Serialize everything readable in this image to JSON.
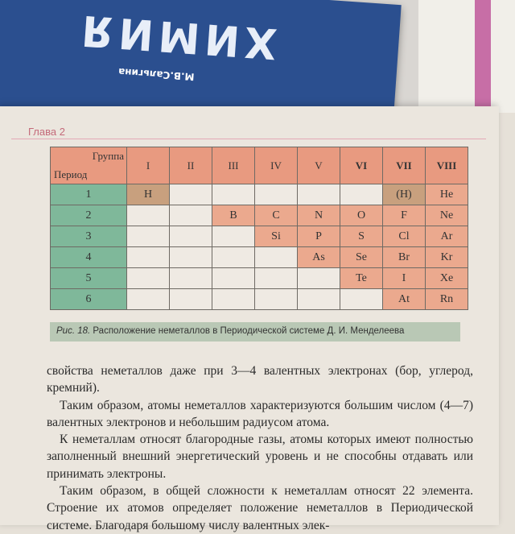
{
  "book": {
    "title": "ХИМИЯ",
    "author": "М.В.Сальгина"
  },
  "chapter": "Глава 2",
  "table": {
    "corner_group": "Группа",
    "corner_period": "Период",
    "groups": [
      "I",
      "II",
      "III",
      "IV",
      "V",
      "VI",
      "VII",
      "VIII"
    ],
    "rows": [
      {
        "period": "1",
        "cells": [
          "H",
          "",
          "",
          "",
          "",
          "",
          "(H)",
          "He"
        ]
      },
      {
        "period": "2",
        "cells": [
          "",
          "",
          "B",
          "C",
          "N",
          "O",
          "F",
          "Ne"
        ]
      },
      {
        "period": "3",
        "cells": [
          "",
          "",
          "",
          "Si",
          "P",
          "S",
          "Cl",
          "Ar"
        ]
      },
      {
        "period": "4",
        "cells": [
          "",
          "",
          "",
          "",
          "As",
          "Se",
          "Br",
          "Kr"
        ]
      },
      {
        "period": "5",
        "cells": [
          "",
          "",
          "",
          "",
          "",
          "Te",
          "I",
          "Xe"
        ]
      },
      {
        "period": "6",
        "cells": [
          "",
          "",
          "",
          "",
          "",
          "",
          "At",
          "Rn"
        ]
      }
    ]
  },
  "caption": {
    "label": "Рис. 18.",
    "text": " Расположение неметаллов в Периодической системе Д. И. Менделеева"
  },
  "paragraphs": [
    "свойства неметаллов даже при 3—4 валентных электронах (бор, углерод, кремний).",
    "Таким образом, атомы неметаллов характеризуются большим числом (4—7) валентных электронов и небольшим радиусом атома.",
    "К неметаллам относят благородные газы, атомы которых имеют полностью заполненный внешний энергетический уровень и не способны отдавать или принимать электроны.",
    "Таким образом, в общей сложности к неметаллам относят 22 элемента. Строение их атомов определяет положение неметаллов в Периодической системе. Благодаря большому числу валентных элек-"
  ],
  "colors": {
    "nonmetal": "#eba98e",
    "period": "#7fb89a",
    "hydrogen": "#c8a07e",
    "cover": "#2b4f8f"
  }
}
